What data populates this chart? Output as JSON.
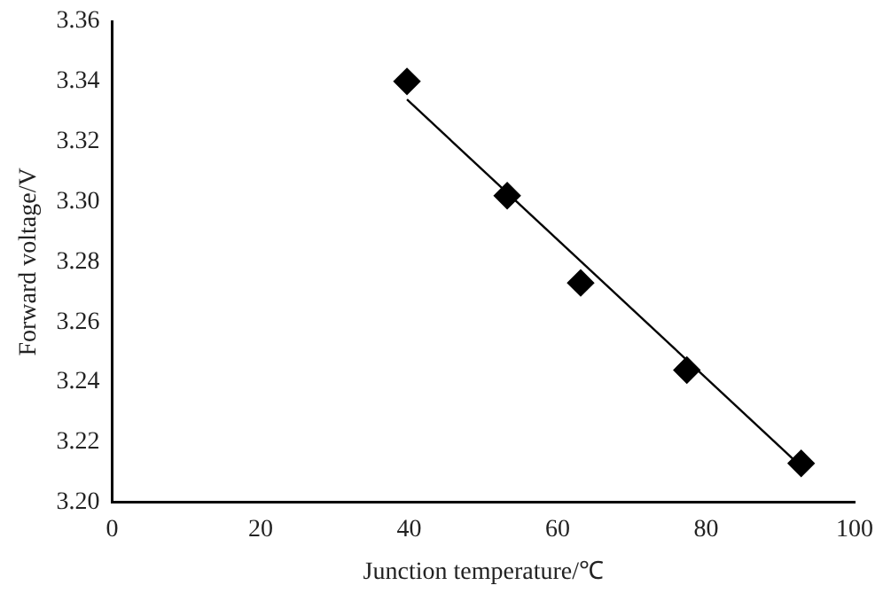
{
  "chart_data": {
    "type": "scatter",
    "xlabel": "Junction temperature/℃",
    "ylabel": "Forward voltage/V",
    "x": [
      39.7,
      53.2,
      63.1,
      77.4,
      92.8
    ],
    "series": [
      {
        "type": "scatter",
        "color": "#000000",
        "marker": "diamond",
        "values": [
          3.34,
          3.302,
          3.273,
          3.244,
          3.213
        ]
      },
      {
        "type": "line",
        "color": "#000000",
        "marker": "none",
        "x": [
          39.7,
          91.9
        ],
        "values": [
          3.334,
          3.214
        ]
      }
    ],
    "xlim": [
      0,
      100
    ],
    "xticks": [
      0,
      20,
      40,
      60,
      80,
      100
    ],
    "ylim": [
      3.2,
      3.36
    ],
    "yticks": [
      {
        "value": 3.2,
        "label": "3.20"
      },
      {
        "value": 3.22,
        "label": "3.22"
      },
      {
        "value": 3.24,
        "label": "3.24"
      },
      {
        "value": 3.26,
        "label": "3.26"
      },
      {
        "value": 3.28,
        "label": "3.28"
      },
      {
        "value": 3.3,
        "label": "3.30"
      },
      {
        "value": 3.32,
        "label": "3.32"
      },
      {
        "value": 3.34,
        "label": "3.34"
      },
      {
        "value": 3.36,
        "label": "3.36"
      }
    ],
    "grid": false,
    "legend": false
  }
}
